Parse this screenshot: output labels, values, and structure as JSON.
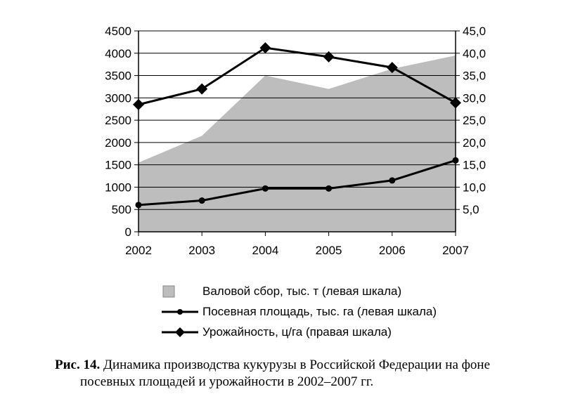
{
  "chart_data": {
    "type": "area+line",
    "categories": [
      "2002",
      "2003",
      "2004",
      "2005",
      "2006",
      "2007"
    ],
    "y_left": {
      "ylim": [
        0,
        4500
      ],
      "ticks": [
        "0",
        "500",
        "1000",
        "1500",
        "2000",
        "2500",
        "3000",
        "3500",
        "4000",
        "4500"
      ]
    },
    "y_right": {
      "ylim": [
        0,
        45
      ],
      "ticks": [
        "5,0",
        "10,0",
        "15,0",
        "20,0",
        "25,0",
        "30,0",
        "35,0",
        "40,0",
        "45,0"
      ]
    },
    "grid": "horizontal",
    "series": [
      {
        "name": "Валовой сбор, тыс. т (левая шкала)",
        "kind": "area",
        "axis": "left",
        "color": "#bdbdbd",
        "values": [
          1550,
          2150,
          3500,
          3200,
          3650,
          3950
        ]
      },
      {
        "name": "Посевная площадь, тыс. га (левая шкала)",
        "kind": "line",
        "marker": "circle",
        "axis": "left",
        "color": "#000000",
        "values": [
          600,
          700,
          970,
          970,
          1150,
          1600
        ]
      },
      {
        "name": "Урожайность, ц/га (правая шкала)",
        "kind": "line",
        "marker": "diamond",
        "axis": "right",
        "color": "#000000",
        "values": [
          28.5,
          32.0,
          41.2,
          39.2,
          36.8,
          28.9
        ]
      }
    ]
  },
  "caption": {
    "label": "Рис. 14.",
    "line1": " Динамика производства кукурузы в Российской Федерации на фоне",
    "line2": "посевных площадей и урожайности в 2002–2007 гг."
  }
}
